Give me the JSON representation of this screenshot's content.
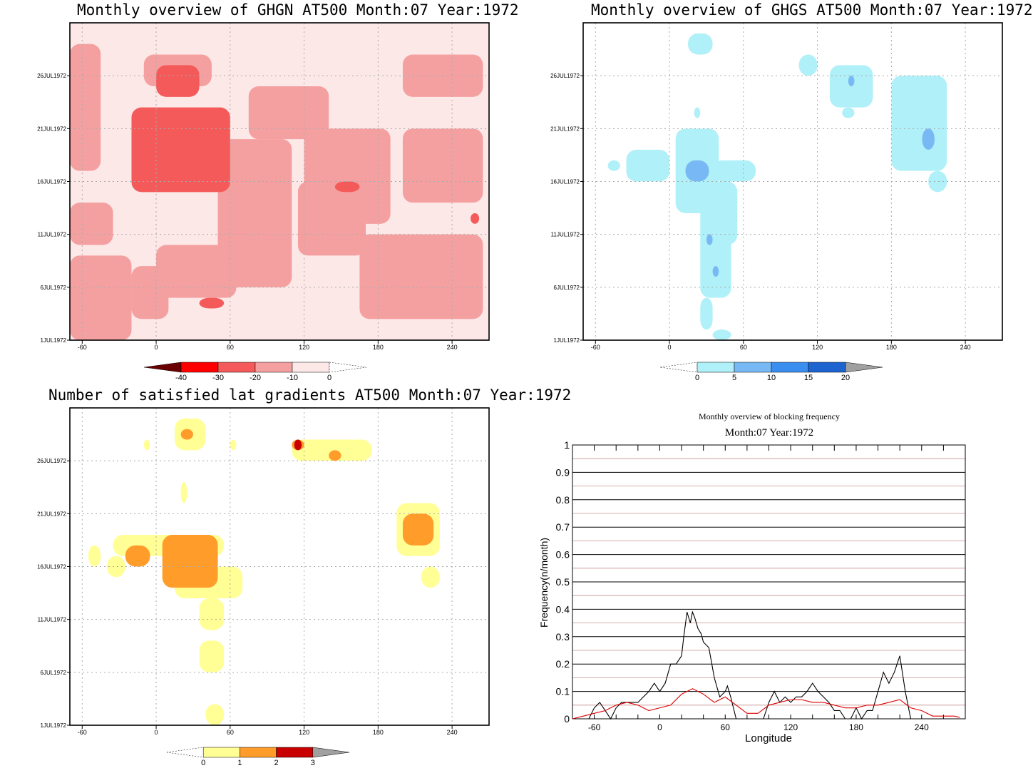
{
  "chart_data": [
    {
      "type": "heatmap",
      "title": "Monthly overview of GHGN AT500 Month:07 Year:1972",
      "x_ticks": [
        "-60",
        "0",
        "60",
        "120",
        "180",
        "240"
      ],
      "y_ticks": [
        "1JUL1972",
        "6JUL1972",
        "11JUL1972",
        "16JUL1972",
        "21JUL1972",
        "26JUL1972"
      ],
      "colorbar": {
        "ticks": [
          "-40",
          "-30",
          "-20",
          "-10",
          "0"
        ],
        "colors": [
          "#6b0000",
          "#ff0000",
          "#f55a5a",
          "#f5a0a0",
          "#fde8e8"
        ]
      },
      "background_color": "#fde8e8",
      "levels_color": {
        "-10": "#f5a0a0",
        "-20": "#f55a5a",
        "-30": "#ff0000"
      },
      "regions": [
        {
          "level": "-10",
          "cells": [
            [
              -70,
              1,
              -20,
              9
            ],
            [
              -70,
              10,
              -35,
              14
            ],
            [
              -20,
              3,
              10,
              8
            ],
            [
              0,
              5,
              65,
              10
            ],
            [
              50,
              6,
              110,
              20
            ],
            [
              115,
              9,
              170,
              16
            ],
            [
              165,
              3,
              265,
              11
            ],
            [
              200,
              14,
              265,
              21
            ],
            [
              -70,
              17,
              -45,
              29
            ],
            [
              -10,
              25,
              45,
              28
            ],
            [
              120,
              12,
              190,
              21
            ],
            [
              75,
              20,
              140,
              25
            ],
            [
              200,
              24,
              265,
              28
            ]
          ]
        },
        {
          "level": "-20",
          "cells": [
            [
              -20,
              15,
              60,
              23
            ],
            [
              0,
              24,
              35,
              27
            ],
            [
              145,
              15,
              165,
              16
            ],
            [
              255,
              12,
              262,
              13
            ],
            [
              35,
              4,
              55,
              5
            ]
          ]
        }
      ]
    },
    {
      "type": "heatmap",
      "title": "Monthly overview of GHGS AT500 Month:07 Year:1972",
      "x_ticks": [
        "-60",
        "0",
        "60",
        "120",
        "180",
        "240"
      ],
      "y_ticks": [
        "1JUL1972",
        "6JUL1972",
        "11JUL1972",
        "16JUL1972",
        "21JUL1972",
        "26JUL1972"
      ],
      "colorbar": {
        "ticks": [
          "0",
          "5",
          "10",
          "15",
          "20"
        ],
        "colors": [
          "#b0f0f8",
          "#78b8f4",
          "#3a8ef0",
          "#1e64d0",
          "#a0a0a0"
        ]
      },
      "levels_color": {
        "0": "#b0f0f8",
        "5": "#78b8f4"
      },
      "regions": [
        {
          "level": "0",
          "cells": [
            [
              -50,
              17,
              -40,
              18
            ],
            [
              -35,
              16,
              0,
              19
            ],
            [
              5,
              13,
              40,
              21
            ],
            [
              25,
              10,
              55,
              16
            ],
            [
              35,
              16,
              70,
              18
            ],
            [
              25,
              5,
              50,
              12
            ],
            [
              25,
              2,
              35,
              5
            ],
            [
              35,
              1,
              50,
              2
            ],
            [
              15,
              28,
              35,
              30
            ],
            [
              20,
              22,
              25,
              23
            ],
            [
              105,
              26,
              120,
              28
            ],
            [
              130,
              23,
              165,
              27
            ],
            [
              140,
              22,
              150,
              23
            ],
            [
              180,
              17,
              225,
              26
            ],
            [
              210,
              15,
              225,
              17
            ]
          ]
        },
        {
          "level": "5",
          "cells": [
            [
              13,
              16,
              32,
              18
            ],
            [
              30,
              10,
              35,
              11
            ],
            [
              35,
              7,
              40,
              8
            ],
            [
              145,
              25,
              150,
              26
            ],
            [
              205,
              19,
              215,
              21
            ]
          ]
        }
      ]
    },
    {
      "type": "heatmap",
      "title": "Number of satisfied lat gradients AT500 Month:07 Year:1972",
      "x_ticks": [
        "-60",
        "0",
        "60",
        "120",
        "180",
        "240"
      ],
      "y_ticks": [
        "1JUL1972",
        "6JUL1972",
        "11JUL1972",
        "16JUL1972",
        "21JUL1972",
        "26JUL1972"
      ],
      "colorbar": {
        "ticks": [
          "0",
          "1",
          "2",
          "3"
        ],
        "colors": [
          "#ffff96",
          "#ff9c2a",
          "#c80000",
          "#a0a0a0"
        ]
      },
      "levels_color": {
        "1": "#ffff96",
        "2": "#ff9c2a",
        "3": "#c80000"
      },
      "regions": [
        {
          "level": "1",
          "cells": [
            [
              -55,
              16,
              -45,
              18
            ],
            [
              -40,
              15,
              -25,
              17
            ],
            [
              -35,
              17,
              55,
              19
            ],
            [
              15,
              13,
              70,
              16
            ],
            [
              35,
              10,
              55,
              13
            ],
            [
              35,
              6,
              55,
              9
            ],
            [
              40,
              1,
              55,
              3
            ],
            [
              15,
              27,
              40,
              30
            ],
            [
              -10,
              27,
              -5,
              28
            ],
            [
              60,
              27,
              65,
              28
            ],
            [
              110,
              26,
              175,
              28
            ],
            [
              195,
              17,
              230,
              22
            ],
            [
              215,
              14,
              230,
              16
            ],
            [
              20,
              22,
              25,
              24
            ]
          ]
        },
        {
          "level": "2",
          "cells": [
            [
              -25,
              16,
              -5,
              18
            ],
            [
              5,
              14,
              50,
              19
            ],
            [
              110,
              27,
              120,
              28
            ],
            [
              140,
              26,
              150,
              27
            ],
            [
              200,
              18,
              225,
              21
            ],
            [
              20,
              28,
              30,
              29
            ]
          ]
        },
        {
          "level": "3",
          "cells": [
            [
              112,
              27,
              118,
              28
            ]
          ]
        }
      ]
    },
    {
      "type": "line",
      "title": "Monthly overview of blocking frequency",
      "subtitle": "Month:07 Year:1972",
      "xlabel": "Longitude",
      "ylabel": "Frequency(n/month)",
      "xlim": [
        -80,
        280
      ],
      "ylim": [
        0,
        1
      ],
      "x_ticks": [
        "-60",
        "0",
        "60",
        "120",
        "180",
        "240"
      ],
      "y_ticks": [
        "0",
        "0.1",
        "0.2",
        "0.3",
        "0.4",
        "0.5",
        "0.6",
        "0.7",
        "0.8",
        "0.9",
        "1"
      ],
      "grid": true,
      "series": [
        {
          "color": "#000000",
          "x": [
            -80,
            -65,
            -60,
            -55,
            -50,
            -45,
            -40,
            -35,
            -30,
            -20,
            -15,
            -10,
            -5,
            0,
            5,
            10,
            15,
            20,
            22,
            25,
            28,
            30,
            32,
            35,
            38,
            40,
            45,
            50,
            55,
            60,
            62,
            65,
            70,
            75,
            80,
            85,
            90,
            95,
            100,
            105,
            110,
            115,
            120,
            125,
            130,
            135,
            140,
            145,
            150,
            155,
            160,
            165,
            170,
            175,
            180,
            185,
            190,
            195,
            200,
            205,
            210,
            215,
            220,
            225,
            230,
            235,
            240,
            250,
            260,
            270,
            280
          ],
          "y": [
            0,
            0,
            0.04,
            0.06,
            0.03,
            0,
            0.04,
            0.06,
            0.06,
            0.06,
            0.08,
            0.1,
            0.13,
            0.1,
            0.13,
            0.2,
            0.2,
            0.23,
            0.3,
            0.39,
            0.35,
            0.39,
            0.37,
            0.33,
            0.31,
            0.28,
            0.26,
            0.15,
            0.08,
            0.1,
            0.12,
            0.08,
            0,
            0,
            0,
            0,
            0,
            0,
            0.06,
            0.1,
            0.06,
            0.08,
            0.06,
            0.08,
            0.08,
            0.1,
            0.13,
            0.1,
            0.08,
            0.06,
            0.03,
            0.03,
            0,
            0,
            0.04,
            0,
            0.03,
            0.03,
            0.1,
            0.17,
            0.13,
            0.17,
            0.23,
            0.1,
            0,
            0,
            0,
            0,
            0,
            0,
            0
          ]
        },
        {
          "color": "#e00000",
          "x": [
            -80,
            -70,
            -60,
            -50,
            -40,
            -30,
            -20,
            -10,
            0,
            10,
            20,
            30,
            40,
            50,
            60,
            70,
            80,
            90,
            100,
            110,
            120,
            130,
            140,
            150,
            160,
            170,
            180,
            190,
            200,
            210,
            220,
            230,
            240,
            250,
            260,
            270,
            275
          ],
          "y": [
            0,
            0.01,
            0.02,
            0.03,
            0.05,
            0.06,
            0.05,
            0.03,
            0.04,
            0.05,
            0.09,
            0.11,
            0.09,
            0.06,
            0.08,
            0.05,
            0.02,
            0.02,
            0.05,
            0.06,
            0.07,
            0.07,
            0.06,
            0.06,
            0.05,
            0.04,
            0.04,
            0.05,
            0.05,
            0.06,
            0.07,
            0.04,
            0.03,
            0.01,
            0.01,
            0.01,
            0.005
          ]
        }
      ]
    }
  ]
}
